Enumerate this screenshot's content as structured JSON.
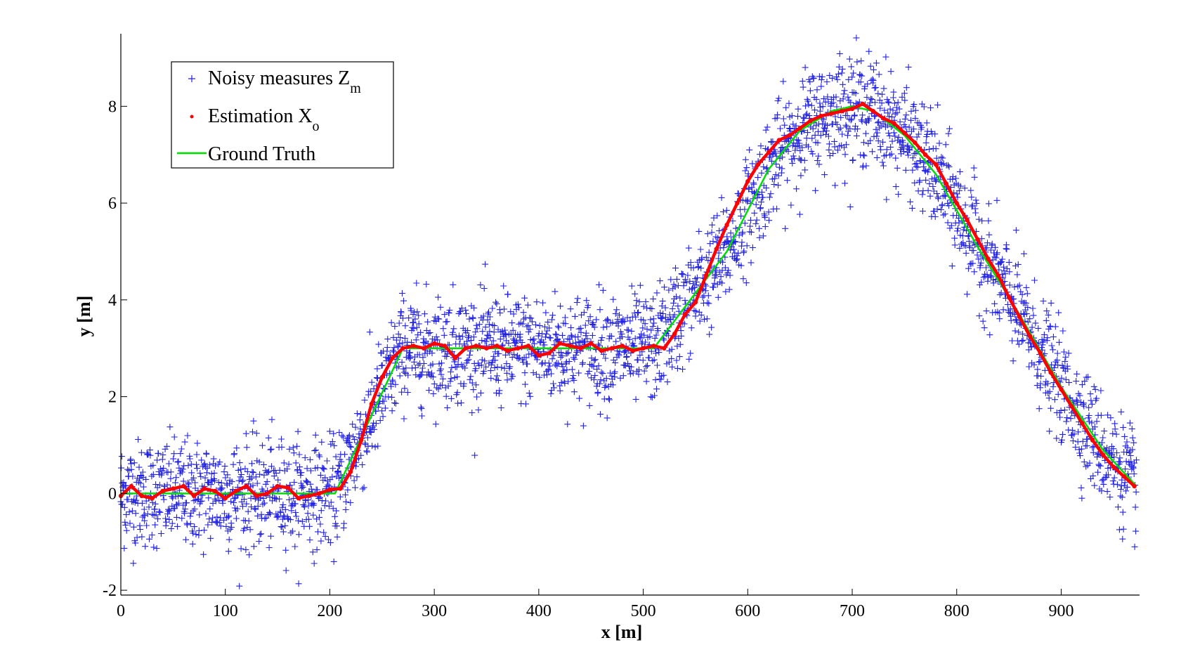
{
  "chart_data": {
    "type": "scatter",
    "xlabel": "x [m]",
    "ylabel": "y [m]",
    "xlim": [
      0,
      975
    ],
    "ylim": [
      -2.1,
      9.5
    ],
    "x_ticks": [
      0,
      100,
      200,
      300,
      400,
      500,
      600,
      700,
      800,
      900
    ],
    "y_ticks": [
      -2,
      0,
      2,
      4,
      6,
      8
    ],
    "grid": false,
    "legend_placement": "top-left",
    "legend": [
      {
        "marker": "plus",
        "color": "#2020e6",
        "text": "Noisy measures Z",
        "sub": "m"
      },
      {
        "marker": "dot",
        "color": "#ff0000",
        "text": "Estimation X",
        "sub": "o"
      },
      {
        "marker": "line",
        "color": "#00dd00",
        "text": "Ground Truth",
        "sub": ""
      }
    ],
    "series": [
      {
        "role": "noisy-measures",
        "color": "#2020e6",
        "marker": "plus",
        "point_count": 3000,
        "x_range": [
          0,
          972
        ],
        "noise_std": 0.55
      },
      {
        "role": "estimation",
        "color": "#ff0000",
        "marker": "dot",
        "x": [
          0,
          10,
          20,
          30,
          40,
          50,
          60,
          70,
          80,
          90,
          100,
          110,
          120,
          130,
          140,
          150,
          160,
          170,
          180,
          190,
          200,
          210,
          220,
          230,
          240,
          250,
          260,
          270,
          280,
          290,
          300,
          310,
          320,
          330,
          340,
          350,
          360,
          370,
          380,
          390,
          400,
          410,
          420,
          430,
          440,
          450,
          460,
          470,
          480,
          490,
          500,
          510,
          520,
          530,
          540,
          550,
          560,
          570,
          580,
          590,
          600,
          610,
          620,
          630,
          640,
          650,
          660,
          670,
          680,
          690,
          700,
          710,
          720,
          730,
          740,
          750,
          760,
          770,
          780,
          790,
          800,
          810,
          820,
          830,
          840,
          850,
          860,
          870,
          880,
          890,
          900,
          910,
          920,
          930,
          940,
          950,
          960,
          970
        ],
        "y": [
          -0.05,
          0.15,
          -0.05,
          -0.1,
          0.05,
          0.1,
          0.15,
          -0.05,
          0.1,
          0.05,
          -0.1,
          0.05,
          0.15,
          -0.05,
          0.0,
          0.15,
          0.12,
          -0.1,
          -0.05,
          0.0,
          0.08,
          0.1,
          0.45,
          1.1,
          1.85,
          2.4,
          2.8,
          3.0,
          3.05,
          3.0,
          3.1,
          3.05,
          2.8,
          3.0,
          3.05,
          3.0,
          3.05,
          2.95,
          3.0,
          3.05,
          2.85,
          2.9,
          3.1,
          3.05,
          3.0,
          3.1,
          2.95,
          3.0,
          3.05,
          2.95,
          3.0,
          3.05,
          3.0,
          3.3,
          3.7,
          3.95,
          4.5,
          5.05,
          5.55,
          6.0,
          6.45,
          6.8,
          7.05,
          7.3,
          7.4,
          7.55,
          7.7,
          7.8,
          7.85,
          7.9,
          7.95,
          8.05,
          7.9,
          7.75,
          7.65,
          7.45,
          7.25,
          7.0,
          6.8,
          6.4,
          6.0,
          5.65,
          5.25,
          4.85,
          4.5,
          4.05,
          3.65,
          3.25,
          2.9,
          2.5,
          2.15,
          1.8,
          1.45,
          1.1,
          0.8,
          0.55,
          0.35,
          0.15
        ]
      },
      {
        "role": "ground-truth",
        "color": "#00dd00",
        "marker": "line",
        "x": [
          0,
          205,
          270,
          510,
          580,
          620,
          650,
          680,
          700,
          720,
          750,
          780,
          820,
          860,
          900,
          940,
          972
        ],
        "y": [
          0,
          0,
          3,
          3,
          5.0,
          6.7,
          7.5,
          7.9,
          8.0,
          7.9,
          7.4,
          6.6,
          5.1,
          3.7,
          2.2,
          0.9,
          0.15
        ]
      }
    ]
  }
}
